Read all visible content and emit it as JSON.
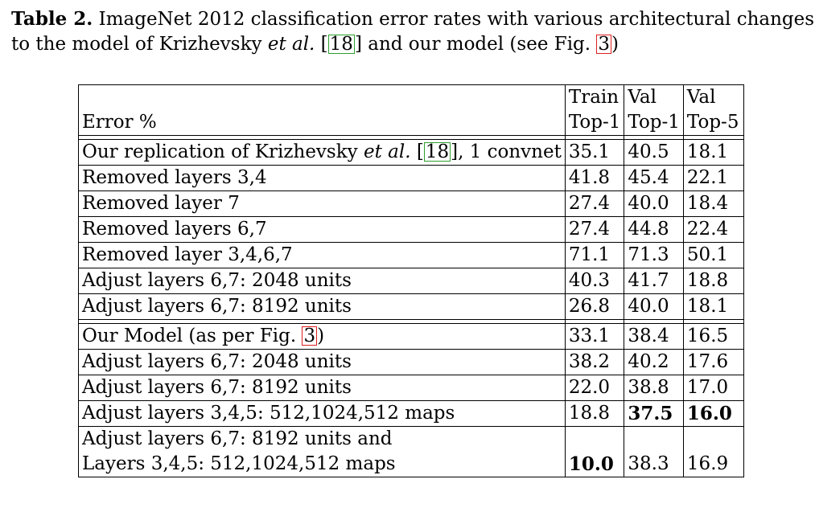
{
  "caption": {
    "label": "Table 2.",
    "text_1": " ImageNet 2012 classification error rates with various architectural changes",
    "text_2": "to the model of Krizhevsky ",
    "et_al": "et al.",
    "ref_18": "18",
    "text_3": " and our model (see Fig. ",
    "fig_ref": "3",
    "text_4": ")"
  },
  "table": {
    "header": {
      "row_label": "Error %",
      "col1_line1": "Train",
      "col1_line2": "Top-1",
      "col2_line1": "Val",
      "col2_line2": "Top-1",
      "col3_line1": "Val",
      "col3_line2": "Top-5"
    },
    "group1": {
      "first_row": {
        "name_pre": "Our replication of Krizhevsky ",
        "name_et_al": "et al.",
        "name_ref": "18",
        "name_post": ", 1 convnet",
        "train_top1": "35.1",
        "val_top1": "40.5",
        "val_top5": "18.1"
      },
      "rows": [
        {
          "name": "Removed layers 3,4",
          "train_top1": "41.8",
          "val_top1": "45.4",
          "val_top5": "22.1"
        },
        {
          "name": "Removed layer 7",
          "train_top1": "27.4",
          "val_top1": "40.0",
          "val_top5": "18.4"
        },
        {
          "name": "Removed layers 6,7",
          "train_top1": "27.4",
          "val_top1": "44.8",
          "val_top5": "22.4"
        },
        {
          "name": "Removed layer 3,4,6,7",
          "train_top1": "71.1",
          "val_top1": "71.3",
          "val_top5": "50.1"
        },
        {
          "name": "Adjust layers 6,7: 2048 units",
          "train_top1": "40.3",
          "val_top1": "41.7",
          "val_top5": "18.8"
        },
        {
          "name": "Adjust layers 6,7: 8192 units",
          "train_top1": "26.8",
          "val_top1": "40.0",
          "val_top5": "18.1"
        }
      ]
    },
    "group2": {
      "first_row": {
        "name_pre": "Our Model (as per Fig. ",
        "name_ref": "3",
        "name_post": ")",
        "train_top1": "33.1",
        "val_top1": "38.4",
        "val_top5": "16.5"
      },
      "rows": [
        {
          "name": "Adjust layers 6,7: 2048 units",
          "train_top1": "38.2",
          "val_top1": "40.2",
          "val_top5": "17.6"
        },
        {
          "name": "Adjust layers 6,7: 8192 units",
          "train_top1": "22.0",
          "val_top1": "38.8",
          "val_top5": "17.0"
        },
        {
          "name": "Adjust layers 3,4,5: 512,1024,512 maps",
          "train_top1": "18.8",
          "val_top1": "37.5",
          "val_top5": "16.0"
        }
      ],
      "last_row": {
        "name_line1": "Adjust layers 6,7: 8192 units and",
        "name_line2": "Layers 3,4,5: 512,1024,512 maps",
        "train_top1": "10.0",
        "val_top1": "38.3",
        "val_top5": "16.9"
      }
    }
  },
  "colors": {
    "citation_box": "#2ca02c",
    "figure_box": "#e02020"
  }
}
